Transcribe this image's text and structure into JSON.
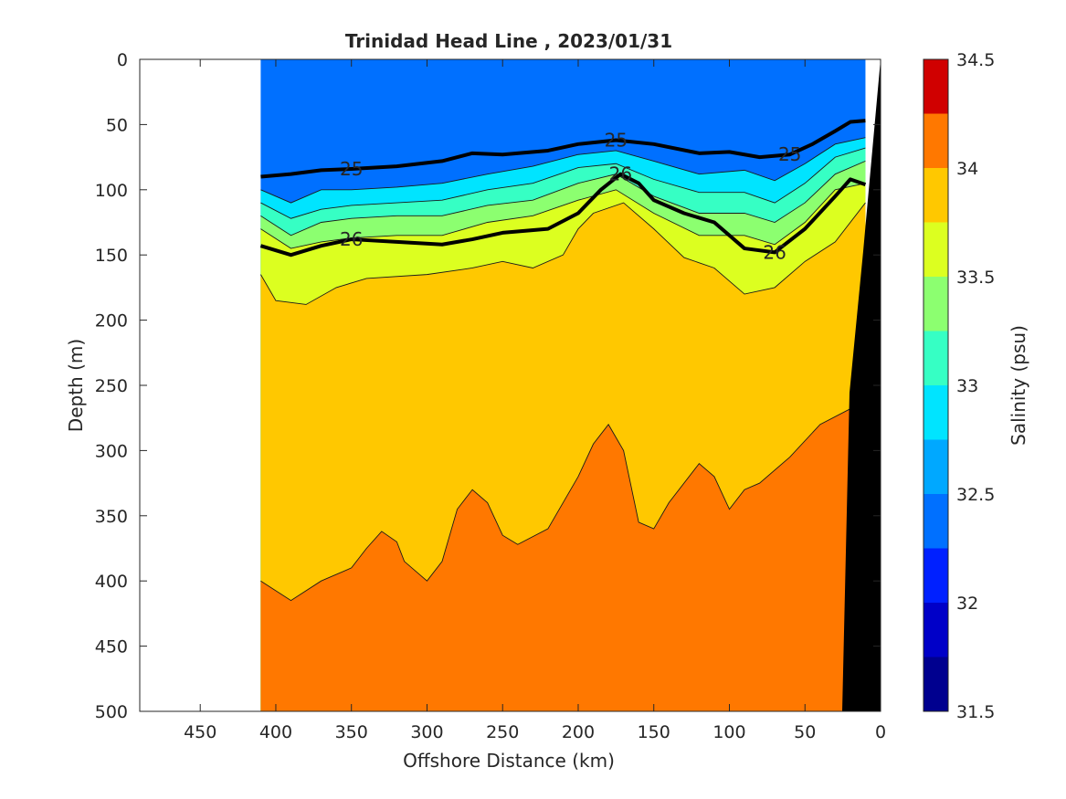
{
  "chart_data": {
    "type": "contour",
    "title": "Trinidad Head Line , 2023/01/31",
    "xlabel": "Offshore Distance (km)",
    "ylabel": "Depth (m)",
    "colorbar_label": "Salinity (psu)",
    "x_reversed": true,
    "y_reversed": true,
    "xlim": [
      0,
      490
    ],
    "ylim": [
      0,
      500
    ],
    "xticks": [
      450,
      400,
      350,
      300,
      250,
      200,
      150,
      100,
      50,
      0
    ],
    "yticks": [
      0,
      50,
      100,
      150,
      200,
      250,
      300,
      350,
      400,
      450,
      500
    ],
    "colorbar": {
      "range": [
        31.5,
        34.5
      ],
      "ticks": [
        "34.5",
        "34",
        "33.5",
        "33",
        "32.5",
        "32",
        "31.5"
      ],
      "levels": [
        31.5,
        31.75,
        32,
        32.25,
        32.5,
        32.75,
        33,
        33.25,
        33.5,
        33.75,
        34,
        34.25,
        34.5
      ],
      "colors": [
        "#00008f",
        "#0000c8",
        "#0020ff",
        "#0070ff",
        "#00a8ff",
        "#00e4ff",
        "#36ffc4",
        "#8cff70",
        "#dcff20",
        "#ffc800",
        "#ff7800",
        "#ff2000",
        "#d00000"
      ]
    },
    "data_extent_km": [
      10,
      410
    ],
    "salinity_bands": [
      {
        "level": 32.75,
        "depth": [
          [
            410,
            100
          ],
          [
            390,
            110
          ],
          [
            370,
            100
          ],
          [
            350,
            100
          ],
          [
            320,
            98
          ],
          [
            290,
            95
          ],
          [
            260,
            88
          ],
          [
            230,
            82
          ],
          [
            200,
            73
          ],
          [
            175,
            70
          ],
          [
            150,
            78
          ],
          [
            120,
            88
          ],
          [
            90,
            85
          ],
          [
            70,
            93
          ],
          [
            50,
            80
          ],
          [
            30,
            65
          ],
          [
            10,
            60
          ]
        ]
      },
      {
        "level": 33.0,
        "depth": [
          [
            410,
            110
          ],
          [
            390,
            122
          ],
          [
            370,
            115
          ],
          [
            350,
            112
          ],
          [
            320,
            110
          ],
          [
            290,
            108
          ],
          [
            260,
            100
          ],
          [
            230,
            95
          ],
          [
            200,
            83
          ],
          [
            175,
            80
          ],
          [
            150,
            92
          ],
          [
            120,
            102
          ],
          [
            90,
            102
          ],
          [
            70,
            110
          ],
          [
            50,
            95
          ],
          [
            30,
            75
          ],
          [
            10,
            68
          ]
        ]
      },
      {
        "level": 33.25,
        "depth": [
          [
            410,
            120
          ],
          [
            390,
            135
          ],
          [
            370,
            125
          ],
          [
            350,
            122
          ],
          [
            320,
            120
          ],
          [
            290,
            120
          ],
          [
            260,
            112
          ],
          [
            230,
            108
          ],
          [
            200,
            95
          ],
          [
            175,
            88
          ],
          [
            150,
            105
          ],
          [
            120,
            118
          ],
          [
            90,
            118
          ],
          [
            70,
            125
          ],
          [
            50,
            110
          ],
          [
            30,
            88
          ],
          [
            10,
            78
          ]
        ]
      },
      {
        "level": 33.5,
        "depth": [
          [
            410,
            130
          ],
          [
            390,
            145
          ],
          [
            370,
            140
          ],
          [
            350,
            137
          ],
          [
            320,
            135
          ],
          [
            290,
            135
          ],
          [
            260,
            125
          ],
          [
            230,
            120
          ],
          [
            200,
            108
          ],
          [
            175,
            100
          ],
          [
            150,
            118
          ],
          [
            120,
            135
          ],
          [
            90,
            135
          ],
          [
            70,
            142
          ],
          [
            50,
            125
          ],
          [
            30,
            100
          ],
          [
            10,
            95
          ]
        ]
      },
      {
        "level": 33.75,
        "depth": [
          [
            410,
            165
          ],
          [
            400,
            185
          ],
          [
            380,
            188
          ],
          [
            360,
            175
          ],
          [
            340,
            168
          ],
          [
            300,
            165
          ],
          [
            270,
            160
          ],
          [
            250,
            155
          ],
          [
            230,
            160
          ],
          [
            210,
            150
          ],
          [
            200,
            130
          ],
          [
            190,
            118
          ],
          [
            170,
            110
          ],
          [
            150,
            130
          ],
          [
            130,
            152
          ],
          [
            110,
            160
          ],
          [
            90,
            180
          ],
          [
            70,
            175
          ],
          [
            50,
            155
          ],
          [
            30,
            140
          ],
          [
            10,
            110
          ]
        ]
      },
      {
        "level": 34.0,
        "depth": [
          [
            410,
            400
          ],
          [
            390,
            415
          ],
          [
            370,
            400
          ],
          [
            350,
            390
          ],
          [
            340,
            375
          ],
          [
            330,
            362
          ],
          [
            320,
            370
          ],
          [
            315,
            385
          ],
          [
            300,
            400
          ],
          [
            290,
            385
          ],
          [
            280,
            345
          ],
          [
            270,
            330
          ],
          [
            260,
            340
          ],
          [
            250,
            365
          ],
          [
            240,
            372
          ],
          [
            220,
            360
          ],
          [
            200,
            320
          ],
          [
            190,
            295
          ],
          [
            180,
            280
          ],
          [
            170,
            300
          ],
          [
            160,
            355
          ],
          [
            150,
            360
          ],
          [
            140,
            340
          ],
          [
            120,
            310
          ],
          [
            110,
            320
          ],
          [
            100,
            345
          ],
          [
            90,
            330
          ],
          [
            80,
            325
          ],
          [
            60,
            305
          ],
          [
            40,
            280
          ],
          [
            20,
            268
          ]
        ]
      }
    ],
    "isopycnals": [
      {
        "label": "25",
        "depth": [
          [
            410,
            90
          ],
          [
            390,
            88
          ],
          [
            370,
            85
          ],
          [
            350,
            84
          ],
          [
            320,
            82
          ],
          [
            290,
            78
          ],
          [
            270,
            72
          ],
          [
            250,
            73
          ],
          [
            220,
            70
          ],
          [
            200,
            65
          ],
          [
            175,
            62
          ],
          [
            150,
            65
          ],
          [
            120,
            72
          ],
          [
            100,
            71
          ],
          [
            80,
            75
          ],
          [
            60,
            73
          ],
          [
            45,
            65
          ],
          [
            30,
            55
          ],
          [
            20,
            48
          ],
          [
            10,
            47
          ]
        ]
      },
      {
        "label": "26",
        "depth": [
          [
            410,
            143
          ],
          [
            390,
            150
          ],
          [
            370,
            143
          ],
          [
            350,
            138
          ],
          [
            320,
            140
          ],
          [
            290,
            142
          ],
          [
            270,
            138
          ],
          [
            250,
            133
          ],
          [
            220,
            130
          ],
          [
            200,
            118
          ],
          [
            185,
            100
          ],
          [
            172,
            88
          ],
          [
            160,
            95
          ],
          [
            150,
            108
          ],
          [
            130,
            118
          ],
          [
            110,
            125
          ],
          [
            90,
            145
          ],
          [
            70,
            148
          ],
          [
            50,
            130
          ],
          [
            30,
            105
          ],
          [
            20,
            92
          ],
          [
            10,
            96
          ]
        ]
      }
    ]
  }
}
